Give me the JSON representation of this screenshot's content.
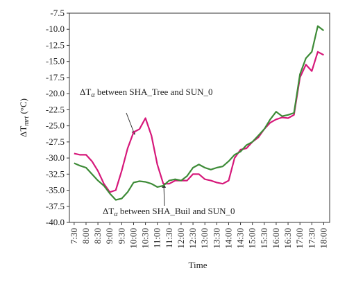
{
  "chart_data": {
    "type": "line",
    "x_label": "Time",
    "y_label": {
      "main": "ΔT",
      "sub": "mrt",
      "unit": " (°C)"
    },
    "annotations": [
      {
        "main": "ΔT",
        "sub": "α",
        "text": " between SHA_Tree and SUN_0"
      },
      {
        "main": "ΔT",
        "sub": "α",
        "text": " between SHA_Buil and SUN_0"
      }
    ],
    "xlim": [
      7.3,
      18.25
    ],
    "xticks": [
      {
        "value": 7.5,
        "label": "7:30"
      },
      {
        "value": 8,
        "label": "8:00"
      },
      {
        "value": 8.5,
        "label": "8:30"
      },
      {
        "value": 9,
        "label": "9:00"
      },
      {
        "value": 9.5,
        "label": "9:30"
      },
      {
        "value": 10,
        "label": "10:00"
      },
      {
        "value": 10.5,
        "label": "10:30"
      },
      {
        "value": 11,
        "label": "11:00"
      },
      {
        "value": 11.5,
        "label": "11:30"
      },
      {
        "value": 12,
        "label": "12:00"
      },
      {
        "value": 12.5,
        "label": "12:30"
      },
      {
        "value": 13,
        "label": "13:00"
      },
      {
        "value": 13.5,
        "label": "13:30"
      },
      {
        "value": 14,
        "label": "14:00"
      },
      {
        "value": 14.5,
        "label": "14:30"
      },
      {
        "value": 15,
        "label": "15:00"
      },
      {
        "value": 15.5,
        "label": "15:30"
      },
      {
        "value": 16,
        "label": "16:00"
      },
      {
        "value": 16.5,
        "label": "16:30"
      },
      {
        "value": 17,
        "label": "17:00"
      },
      {
        "value": 17.5,
        "label": "17:30"
      },
      {
        "value": 18,
        "label": "18:00"
      }
    ],
    "ylim": [
      -40,
      -7.5
    ],
    "yticks": [
      {
        "value": -40,
        "label": "-40.0"
      },
      -37.5,
      {
        "value": -35,
        "label": "-35.0"
      },
      -32.5,
      {
        "value": -30,
        "label": "-30.0"
      },
      -27.5,
      {
        "value": -25,
        "label": "-25.0"
      },
      -22.5,
      {
        "value": -20,
        "label": "-20.0"
      },
      -17.5,
      {
        "value": -15,
        "label": "-15.0"
      },
      -12.5,
      {
        "value": -10,
        "label": "-10.0"
      },
      -7.5
    ],
    "x": [
      7.5,
      7.75,
      8,
      8.25,
      8.5,
      8.75,
      9,
      9.25,
      9.5,
      9.75,
      10,
      10.25,
      10.5,
      10.75,
      11,
      11.25,
      11.5,
      11.75,
      12,
      12.25,
      12.5,
      12.75,
      13,
      13.25,
      13.5,
      13.75,
      14,
      14.25,
      14.5,
      14.75,
      15,
      15.25,
      15.5,
      15.75,
      16,
      16.25,
      16.5,
      16.75,
      17,
      17.25,
      17.5,
      17.75,
      18
    ],
    "series": [
      {
        "color": "#d6187a",
        "values": [
          -29.3,
          -29.5,
          -29.5,
          -30.5,
          -32,
          -34,
          -35.3,
          -35,
          -32,
          -28.5,
          -26,
          -25.5,
          -23.8,
          -26.5,
          -31,
          -34,
          -34,
          -33.5,
          -33.5,
          -33.5,
          -32.5,
          -32.5,
          -33.3,
          -33.5,
          -33.8,
          -34,
          -33.5,
          -30,
          -28.7,
          -28.5,
          -27.5,
          -26.8,
          -25.5,
          -24.5,
          -24,
          -23.7,
          -23.8,
          -23.3,
          -17.5,
          -15.5,
          -16.5,
          -13.5,
          -14
        ]
      },
      {
        "color": "#3d8b37",
        "values": [
          -30.8,
          -31.2,
          -31.5,
          -32.5,
          -33.5,
          -34.3,
          -35.5,
          -36.5,
          -36.3,
          -35.3,
          -33.8,
          -33.6,
          -33.7,
          -34,
          -34.5,
          -34.3,
          -33.5,
          -33.3,
          -33.5,
          -32.8,
          -31.5,
          -31,
          -31.5,
          -31.8,
          -31.5,
          -31.3,
          -30.5,
          -29.5,
          -29,
          -28,
          -27.5,
          -26.5,
          -25.5,
          -24,
          -22.8,
          -23.5,
          -23.3,
          -23,
          -17,
          -14.5,
          -13.5,
          -9.5,
          -10.2
        ]
      }
    ]
  }
}
